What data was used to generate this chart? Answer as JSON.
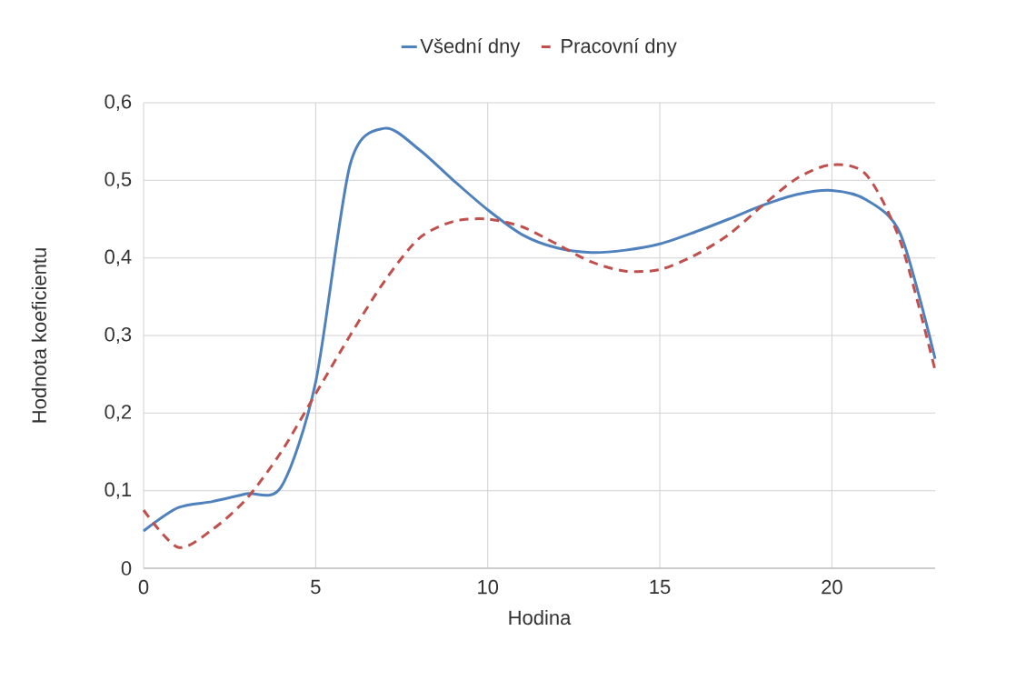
{
  "chart_data": {
    "type": "line",
    "xlabel": "Hodina",
    "ylabel": "Hodnota koeficientu",
    "x": [
      0,
      1,
      2,
      3,
      4,
      5,
      6,
      7,
      8,
      9,
      10,
      11,
      12,
      13,
      14,
      15,
      16,
      17,
      18,
      19,
      20,
      21,
      22,
      23
    ],
    "series": [
      {
        "name": "Všední dny",
        "color": "#4f81bd",
        "line_style": "solid",
        "values": [
          0.048,
          0.078,
          0.086,
          0.096,
          0.105,
          0.24,
          0.52,
          0.567,
          0.54,
          0.5,
          0.462,
          0.43,
          0.413,
          0.407,
          0.41,
          0.418,
          0.433,
          0.45,
          0.468,
          0.482,
          0.487,
          0.475,
          0.43,
          0.27
        ]
      },
      {
        "name": "Pracovní dny",
        "color": "#c0504d",
        "line_style": "dashed",
        "values": [
          0.075,
          0.027,
          0.05,
          0.09,
          0.15,
          0.225,
          0.3,
          0.37,
          0.425,
          0.447,
          0.45,
          0.44,
          0.418,
          0.395,
          0.383,
          0.385,
          0.403,
          0.43,
          0.468,
          0.503,
          0.52,
          0.507,
          0.42,
          0.255
        ]
      }
    ],
    "xlim": [
      0,
      23
    ],
    "xticks": [
      0,
      5,
      10,
      15,
      20
    ],
    "ylim": [
      0,
      0.6
    ],
    "yticks": [
      0,
      {
        "value": 0.1,
        "label": "0,1"
      },
      {
        "value": 0.2,
        "label": "0,2"
      },
      {
        "value": 0.3,
        "label": "0,3"
      },
      {
        "value": 0.4,
        "label": "0,4"
      },
      {
        "value": 0.5,
        "label": "0,5"
      },
      {
        "value": 0.6,
        "label": "0,6"
      }
    ],
    "grid": true,
    "legend": "top",
    "marker": "none"
  }
}
